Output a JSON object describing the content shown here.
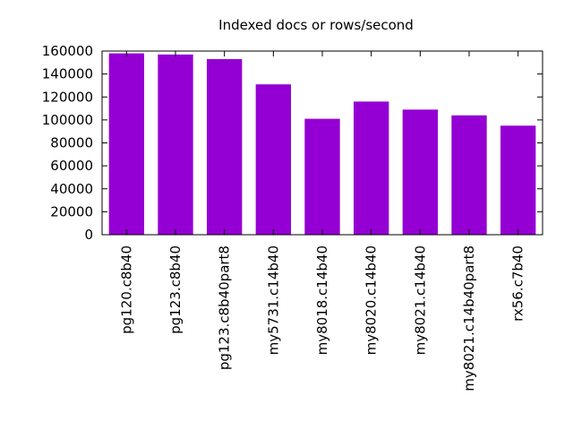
{
  "chart_data": {
    "type": "bar",
    "title": "Indexed docs or rows/second",
    "xlabel": "",
    "ylabel": "",
    "categories": [
      "pg120.c8b40",
      "pg123.c8b40",
      "pg123.c8b40part8",
      "my5731.c14b40",
      "my8018.c14b40",
      "my8020.c14b40",
      "my8021.c14b40",
      "my8021.c14b40part8",
      "rx56.c7b40"
    ],
    "values": [
      158000,
      157000,
      153000,
      131000,
      101000,
      116000,
      109000,
      104000,
      95000
    ],
    "ylim": [
      0,
      160000
    ],
    "yticks": [
      0,
      20000,
      40000,
      60000,
      80000,
      100000,
      120000,
      140000,
      160000
    ],
    "ytick_labels": [
      "0",
      "20000",
      "40000",
      "60000",
      "80000",
      "100000",
      "120000",
      "140000",
      "160000"
    ],
    "bar_color": "#9400d3",
    "grid": false,
    "legend": "none"
  }
}
